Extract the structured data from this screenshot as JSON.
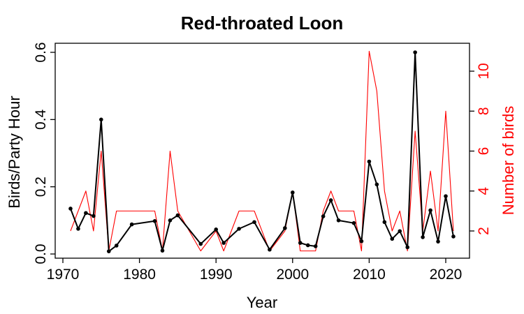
{
  "chart_data": {
    "type": "line",
    "title": "Red-throated Loon",
    "xlabel": "Year",
    "ylabel": "Birds/Party Hour",
    "y2label": "Number of birds",
    "xlim": [
      1970,
      2022
    ],
    "ylim": [
      0,
      0.6
    ],
    "y2lim": [
      1,
      11
    ],
    "x_ticks": [
      1970,
      1980,
      1990,
      2000,
      2010,
      2020
    ],
    "y_ticks": [
      "0.0",
      "0.2",
      "0.4",
      "0.6"
    ],
    "y2_ticks": [
      "2",
      "4",
      "6",
      "8",
      "10"
    ],
    "grid": false,
    "colors": {
      "birds_per_party_hour": "#000000",
      "number_of_birds": "#ff0000"
    },
    "series": [
      {
        "axis": "left",
        "color": "#000000",
        "markers": true,
        "x": [
          1971,
          1972,
          1973,
          1974,
          1975,
          1976,
          1977,
          1979,
          1982,
          1983,
          1984,
          1985,
          1988,
          1990,
          1991,
          1993,
          1995,
          1997,
          1999,
          2000,
          2001,
          2002,
          2003,
          2004,
          2005,
          2006,
          2008,
          2009,
          2010,
          2011,
          2012,
          2013,
          2014,
          2015,
          2016,
          2017,
          2018,
          2019,
          2020,
          2021
        ],
        "y": [
          0.135,
          0.075,
          0.122,
          0.113,
          0.4,
          0.008,
          0.025,
          0.088,
          0.098,
          0.01,
          0.1,
          0.115,
          0.03,
          0.073,
          0.033,
          0.075,
          0.095,
          0.013,
          0.077,
          0.183,
          0.033,
          0.026,
          0.023,
          0.112,
          0.16,
          0.1,
          0.092,
          0.038,
          0.275,
          0.207,
          0.095,
          0.045,
          0.068,
          0.02,
          0.6,
          0.05,
          0.13,
          0.037,
          0.172,
          0.052
        ]
      },
      {
        "axis": "right",
        "color": "#ff0000",
        "markers": false,
        "x": [
          1971,
          1972,
          1973,
          1974,
          1975,
          1976,
          1977,
          1979,
          1982,
          1983,
          1984,
          1985,
          1988,
          1990,
          1991,
          1993,
          1995,
          1997,
          1999,
          2000,
          2001,
          2002,
          2003,
          2004,
          2005,
          2006,
          2008,
          2009,
          2010,
          2011,
          2012,
          2013,
          2014,
          2015,
          2016,
          2017,
          2018,
          2019,
          2020,
          2021
        ],
        "y": [
          2,
          3,
          4,
          2,
          6,
          1,
          3,
          3,
          3,
          1,
          6,
          3,
          1,
          2,
          1,
          3,
          3,
          1,
          2,
          4,
          1,
          1,
          1,
          3,
          4,
          3,
          3,
          1,
          11,
          9,
          4,
          2,
          3,
          1,
          7,
          2,
          5,
          2,
          8,
          2
        ]
      }
    ]
  }
}
